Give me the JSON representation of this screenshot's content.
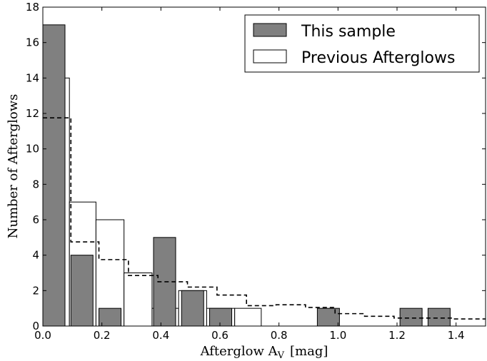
{
  "chart_data": {
    "type": "bar",
    "xlabel": "Afterglow A",
    "xlabel_subscript": "V",
    "xlabel_unit": "[mag]",
    "ylabel": "Number of Afterglows",
    "xlim": [
      0.0,
      1.5
    ],
    "ylim": [
      0,
      18
    ],
    "xticks": [
      "0.0",
      "0.2",
      "0.4",
      "0.6",
      "0.8",
      "1.0",
      "1.2",
      "1.4"
    ],
    "yticks": [
      "0",
      "2",
      "4",
      "6",
      "8",
      "10",
      "12",
      "14",
      "16",
      "18"
    ],
    "grid": false,
    "legend_placement": "top-right",
    "series": [
      {
        "name": "This sample",
        "style": "filled",
        "color": "#808080",
        "bins": [
          {
            "x0": 0.0,
            "x1": 0.075,
            "value": 17
          },
          {
            "x0": 0.095,
            "x1": 0.17,
            "value": 4
          },
          {
            "x0": 0.19,
            "x1": 0.265,
            "value": 1
          },
          {
            "x0": 0.375,
            "x1": 0.45,
            "value": 5
          },
          {
            "x0": 0.47,
            "x1": 0.545,
            "value": 2
          },
          {
            "x0": 0.565,
            "x1": 0.64,
            "value": 1
          },
          {
            "x0": 0.93,
            "x1": 1.005,
            "value": 1
          },
          {
            "x0": 1.21,
            "x1": 1.285,
            "value": 1
          },
          {
            "x0": 1.305,
            "x1": 1.38,
            "value": 1
          }
        ]
      },
      {
        "name": "Previous Afterglows",
        "style": "outline",
        "color": "#ffffff",
        "bins": [
          {
            "x0": 0.0,
            "x1": 0.09,
            "value": 14
          },
          {
            "x0": 0.09,
            "x1": 0.18,
            "value": 7
          },
          {
            "x0": 0.18,
            "x1": 0.275,
            "value": 6
          },
          {
            "x0": 0.275,
            "x1": 0.37,
            "value": 3
          },
          {
            "x0": 0.37,
            "x1": 0.46,
            "value": 1
          },
          {
            "x0": 0.46,
            "x1": 0.555,
            "value": 2
          },
          {
            "x0": 0.555,
            "x1": 0.65,
            "value": 1
          },
          {
            "x0": 0.65,
            "x1": 0.74,
            "value": 1
          }
        ]
      },
      {
        "style": "dashed-step",
        "color": "#000000",
        "steps": [
          {
            "x0": 0.0,
            "x1": 0.095,
            "value": 11.75
          },
          {
            "x0": 0.095,
            "x1": 0.19,
            "value": 4.75
          },
          {
            "x0": 0.19,
            "x1": 0.29,
            "value": 3.75
          },
          {
            "x0": 0.29,
            "x1": 0.39,
            "value": 2.85
          },
          {
            "x0": 0.39,
            "x1": 0.49,
            "value": 2.5
          },
          {
            "x0": 0.49,
            "x1": 0.59,
            "value": 2.2
          },
          {
            "x0": 0.59,
            "x1": 0.69,
            "value": 1.75
          },
          {
            "x0": 0.69,
            "x1": 0.79,
            "value": 1.15
          },
          {
            "x0": 0.79,
            "x1": 0.89,
            "value": 1.2
          },
          {
            "x0": 0.89,
            "x1": 0.99,
            "value": 1.05
          },
          {
            "x0": 0.99,
            "x1": 1.09,
            "value": 0.7
          },
          {
            "x0": 1.09,
            "x1": 1.19,
            "value": 0.55
          },
          {
            "x0": 1.19,
            "x1": 1.29,
            "value": 0.45
          },
          {
            "x0": 1.29,
            "x1": 1.39,
            "value": 0.45
          },
          {
            "x0": 1.39,
            "x1": 1.5,
            "value": 0.4
          }
        ]
      }
    ]
  }
}
